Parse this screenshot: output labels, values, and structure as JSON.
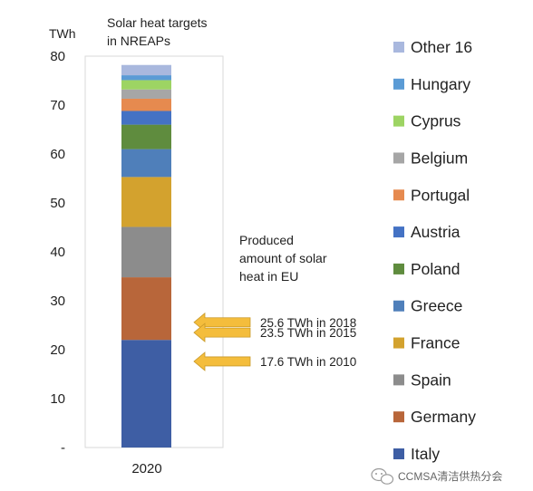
{
  "chart_data": {
    "type": "bar",
    "stacked": true,
    "title_lines": [
      "Solar heat targets",
      "in NREAPs"
    ],
    "ylabel": "TWh",
    "categories": [
      "2020"
    ],
    "y_ticks": [
      "-",
      "10",
      "20",
      "30",
      "40",
      "50",
      "60",
      "70",
      "80"
    ],
    "ylim": [
      0,
      80
    ],
    "series": [
      {
        "name": "Italy",
        "values": [
          22.0
        ],
        "color": "#3e5ea4"
      },
      {
        "name": "Germany",
        "values": [
          12.8
        ],
        "color": "#b8663a"
      },
      {
        "name": "Spain",
        "values": [
          10.3
        ],
        "color": "#8c8c8c"
      },
      {
        "name": "France",
        "values": [
          10.2
        ],
        "color": "#d3a22e"
      },
      {
        "name": "Greece",
        "values": [
          5.7
        ],
        "color": "#4f7fba"
      },
      {
        "name": "Poland",
        "values": [
          5.0
        ],
        "color": "#5f8c3e"
      },
      {
        "name": "Austria",
        "values": [
          2.8
        ],
        "color": "#4472c4"
      },
      {
        "name": "Portugal",
        "values": [
          2.5
        ],
        "color": "#e68a4f"
      },
      {
        "name": "Belgium",
        "values": [
          1.9
        ],
        "color": "#a6a6a6"
      },
      {
        "name": "Cyprus",
        "values": [
          1.9
        ],
        "color": "#9dd463"
      },
      {
        "name": "Hungary",
        "values": [
          1.0
        ],
        "color": "#5b9bd5"
      },
      {
        "name": "Other 16",
        "values": [
          2.1
        ],
        "color": "#a9b8de"
      }
    ],
    "legend_position": "right",
    "grid": false,
    "annotation_heading": [
      "Produced",
      "amount of solar",
      "heat in EU"
    ],
    "annotations": [
      {
        "label": "25.6 TWh in 2018",
        "value": 25.6
      },
      {
        "label": "23.5 TWh in 2015",
        "value": 23.5
      },
      {
        "label": "17.6 TWh in 2010",
        "value": 17.6
      }
    ],
    "arrow_color": "#f4bd3c"
  },
  "watermark": "CCMSA清洁供热分会"
}
